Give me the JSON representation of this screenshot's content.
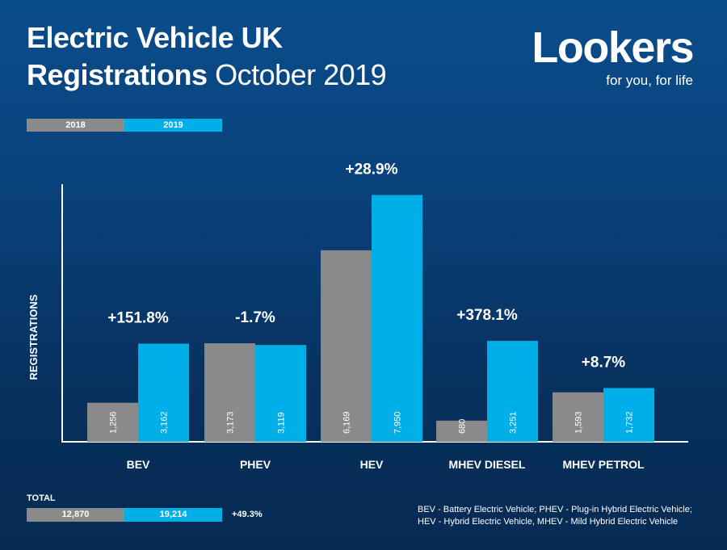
{
  "header": {
    "title_line1": "Electric Vehicle UK",
    "title_line2_bold": "Registrations",
    "title_line2_light": "October 2019"
  },
  "brand": {
    "name": "Lookers",
    "tagline": "for you, for life"
  },
  "legend": {
    "items": [
      {
        "label": "2018",
        "color": "#8a8a8a"
      },
      {
        "label": "2019",
        "color": "#00aee8"
      }
    ]
  },
  "chart_data": {
    "type": "bar",
    "title": "Electric Vehicle UK Registrations October 2019",
    "ylabel": "REGISTRATIONS",
    "xlabel": "",
    "ylim": [
      0,
      8300
    ],
    "grid": false,
    "legend": "top-left",
    "categories": [
      "BEV",
      "PHEV",
      "HEV",
      "MHEV DIESEL",
      "MHEV PETROL"
    ],
    "series": [
      {
        "name": "2018",
        "color": "#8a8a8a",
        "values": [
          1256,
          3173,
          6169,
          680,
          1593
        ],
        "labels": [
          "1,256",
          "3,173",
          "6,169",
          "680",
          "1,593"
        ]
      },
      {
        "name": "2019",
        "color": "#00aee8",
        "values": [
          3162,
          3119,
          7950,
          3251,
          1732
        ],
        "labels": [
          "3,162",
          "3,119",
          "7,950",
          "3,251",
          "1,732"
        ]
      }
    ],
    "annotations": [
      "+151.8%",
      "-1.7%",
      "+28.9%",
      "+378.1%",
      "+8.7%"
    ]
  },
  "totals": {
    "label": "TOTAL",
    "value_2018": "12,870",
    "value_2019": "19,214",
    "change": "+49.3%"
  },
  "footnote": {
    "line1": "BEV - Battery Electric Vehicle; PHEV - Plug-in Hybrid Electric Vehicle;",
    "line2": "HEV - Hybrid Electric Vehicle, MHEV - Mild Hybrid Electric Vehicle"
  }
}
